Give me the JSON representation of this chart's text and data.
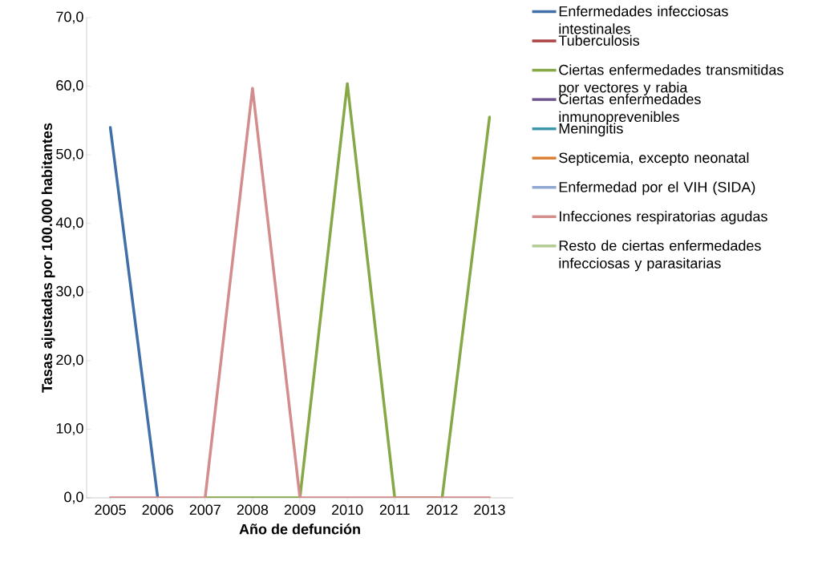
{
  "chart_data": {
    "type": "line",
    "xlabel": "Año de defunción",
    "ylabel": "Tasas ajustadas por 100.000 habitantes",
    "categories": [
      "2005",
      "2006",
      "2007",
      "2008",
      "2009",
      "2010",
      "2011",
      "2012",
      "2013"
    ],
    "ylim": [
      0,
      70
    ],
    "yticks": [
      {
        "value": 0,
        "label": "0,0"
      },
      {
        "value": 10,
        "label": "10,0"
      },
      {
        "value": 20,
        "label": "20,0"
      },
      {
        "value": 30,
        "label": "30,0"
      },
      {
        "value": 40,
        "label": "40,0"
      },
      {
        "value": 50,
        "label": "50,0"
      },
      {
        "value": 60,
        "label": "60,0"
      },
      {
        "value": 70,
        "label": "70,0"
      }
    ],
    "legend": "right",
    "grid": false,
    "marker": "none",
    "line_style": "solid",
    "series": [
      {
        "name": "Enfermedades infecciosas intestinales",
        "color": "#4170a8",
        "values": [
          54.0,
          0,
          null,
          null,
          null,
          null,
          null,
          null,
          null
        ]
      },
      {
        "name": "Tuberculosis",
        "color": "#ab4442",
        "values": [
          null,
          null,
          null,
          null,
          null,
          null,
          null,
          null,
          null
        ]
      },
      {
        "name": "Ciertas enfermedades transmitidas por vectores y rabia",
        "color": "#87a846",
        "values": [
          null,
          null,
          0,
          0,
          0,
          60.4,
          0,
          0,
          55.5
        ]
      },
      {
        "name": "Ciertas enfermedades inmunoprevenibles",
        "color": "#6e558f",
        "values": [
          null,
          null,
          null,
          null,
          null,
          null,
          null,
          null,
          null
        ]
      },
      {
        "name": "Meningitis",
        "color": "#3f97ac",
        "values": [
          null,
          null,
          null,
          null,
          null,
          null,
          null,
          null,
          null
        ]
      },
      {
        "name": "Septicemia, excepto neonatal",
        "color": "#db8135",
        "values": [
          null,
          null,
          null,
          null,
          null,
          null,
          null,
          null,
          null
        ]
      },
      {
        "name": "Enfermedad por el VIH (SIDA)",
        "color": "#91a9d2",
        "values": [
          null,
          null,
          null,
          null,
          null,
          null,
          null,
          null,
          null
        ]
      },
      {
        "name": "Infecciones respiratorias agudas",
        "color": "#d28d8c",
        "values": [
          0,
          0,
          0,
          59.7,
          0,
          0,
          0,
          0,
          0
        ]
      },
      {
        "name": "Resto de ciertas enfermedades infecciosas y parasitarias",
        "color": "#b3cc92",
        "values": [
          null,
          null,
          null,
          null,
          null,
          null,
          null,
          null,
          null
        ]
      }
    ]
  }
}
